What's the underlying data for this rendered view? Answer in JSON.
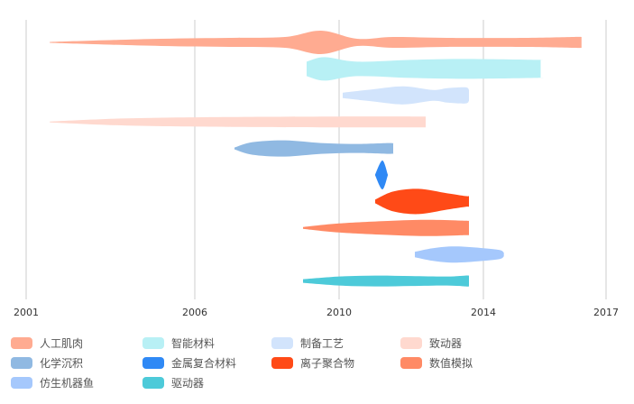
{
  "chart_data": {
    "type": "streamgraph-timeline",
    "title": "",
    "xlabel": "",
    "ylabel": "",
    "x_ticks": [
      "2001",
      "2006",
      "2010",
      "2014",
      "2017"
    ],
    "xlim": [
      2001,
      2017
    ],
    "grid": true,
    "legend_position": "bottom",
    "series": [
      {
        "name": "人工肌肉",
        "color": "#ffab91",
        "points": [
          [
            2001.7,
            1
          ],
          [
            2003,
            4
          ],
          [
            2005,
            8
          ],
          [
            2007,
            10
          ],
          [
            2008.5,
            12
          ],
          [
            2009.5,
            26
          ],
          [
            2010.5,
            8
          ],
          [
            2011.5,
            12
          ],
          [
            2013,
            10
          ],
          [
            2015,
            10
          ],
          [
            2016.2,
            12
          ],
          [
            2016.4,
            12
          ]
        ]
      },
      {
        "name": "智能材料",
        "color": "#b8f0f5",
        "points": [
          [
            2009.1,
            16
          ],
          [
            2009.6,
            26
          ],
          [
            2010.5,
            16
          ],
          [
            2012,
            20
          ],
          [
            2013.5,
            22
          ],
          [
            2015.3,
            20
          ],
          [
            2015.4,
            20
          ]
        ]
      },
      {
        "name": "制备工艺",
        "color": "#d2e4fc",
        "points": [
          [
            2010.1,
            6
          ],
          [
            2011,
            14
          ],
          [
            2011.8,
            20
          ],
          [
            2012.6,
            12
          ],
          [
            2013,
            16
          ],
          [
            2013.5,
            18
          ],
          [
            2013.6,
            12
          ]
        ]
      },
      {
        "name": "致动器",
        "color": "#ffd9cf",
        "points": [
          [
            2001.7,
            1
          ],
          [
            2004,
            8
          ],
          [
            2007,
            11
          ],
          [
            2010,
            12
          ],
          [
            2012,
            12
          ],
          [
            2012.4,
            12
          ]
        ]
      },
      {
        "name": "化学沉积",
        "color": "#90b9e2",
        "points": [
          [
            2007.1,
            2
          ],
          [
            2007.6,
            14
          ],
          [
            2008.5,
            18
          ],
          [
            2009.5,
            12
          ],
          [
            2010.5,
            10
          ],
          [
            2011.4,
            12
          ],
          [
            2011.5,
            10
          ]
        ]
      },
      {
        "name": "金属复合材料",
        "color": "#2f89f5",
        "points": [
          [
            2011,
            1
          ],
          [
            2011.2,
            32
          ],
          [
            2011.35,
            1
          ]
        ]
      },
      {
        "name": "离子聚合物",
        "color": "#ff4a17",
        "points": [
          [
            2011,
            4
          ],
          [
            2011.5,
            22
          ],
          [
            2012.2,
            28
          ],
          [
            2013,
            18
          ],
          [
            2013.5,
            12
          ],
          [
            2013.6,
            12
          ]
        ]
      },
      {
        "name": "数值模拟",
        "color": "#ff8a65",
        "points": [
          [
            2009,
            2
          ],
          [
            2010,
            10
          ],
          [
            2011.5,
            16
          ],
          [
            2012.5,
            18
          ],
          [
            2013.5,
            16
          ],
          [
            2013.6,
            16
          ]
        ]
      },
      {
        "name": "仿生机器鱼",
        "color": "#a5c8fc",
        "points": [
          [
            2012.1,
            6
          ],
          [
            2012.6,
            14
          ],
          [
            2013.2,
            18
          ],
          [
            2014,
            14
          ],
          [
            2014.4,
            10
          ],
          [
            2014.5,
            4
          ]
        ]
      },
      {
        "name": "驱动器",
        "color": "#4dcad9",
        "points": [
          [
            2009,
            4
          ],
          [
            2010,
            10
          ],
          [
            2011,
            12
          ],
          [
            2012,
            11
          ],
          [
            2013,
            10
          ],
          [
            2013.5,
            12
          ],
          [
            2013.6,
            12
          ]
        ]
      }
    ]
  }
}
